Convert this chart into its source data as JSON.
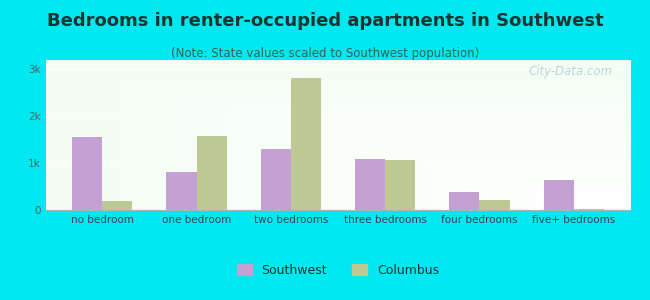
{
  "title": "Bedrooms in renter-occupied apartments in Southwest",
  "subtitle": "(Note: State values scaled to Southwest population)",
  "categories": [
    "no bedroom",
    "one bedroom",
    "two bedrooms",
    "three bedrooms",
    "four bedrooms",
    "five+ bedrooms"
  ],
  "southwest_values": [
    1550,
    820,
    1300,
    1080,
    380,
    650
  ],
  "columbus_values": [
    200,
    1580,
    2820,
    1070,
    210,
    20
  ],
  "southwest_color": "#c4a0d4",
  "columbus_color": "#bec895",
  "ylim": [
    0,
    3200
  ],
  "yticks": [
    0,
    1000,
    2000,
    3000
  ],
  "ytick_labels": [
    "0",
    "1k",
    "2k",
    "3k"
  ],
  "background_outer": "#00e8f0",
  "bar_width": 0.32,
  "title_fontsize": 13,
  "subtitle_fontsize": 8.5,
  "label_fontsize": 7.5,
  "legend_fontsize": 9,
  "watermark_text": "City-Data.com",
  "watermark_color": "#a8c8cc",
  "watermark_alpha": 0.75
}
